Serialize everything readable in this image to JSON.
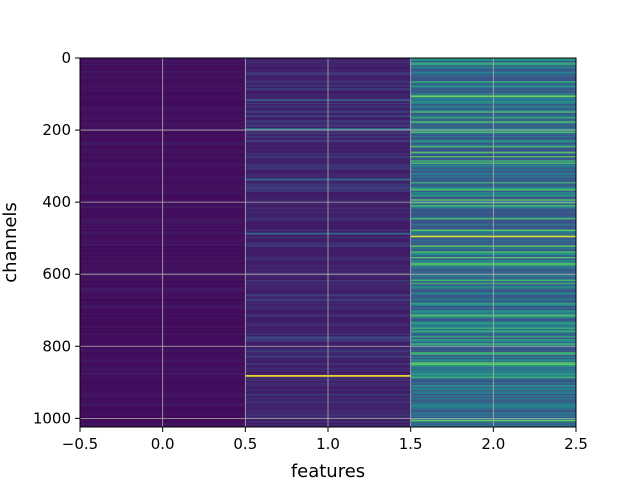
{
  "chart_data": {
    "type": "heatmap",
    "title": "",
    "xlabel": "features",
    "ylabel": "channels",
    "xlim": [
      -0.5,
      2.5
    ],
    "ylim": [
      1024,
      0
    ],
    "y_inverted": true,
    "rows": 1024,
    "columns": [
      0,
      1,
      2
    ],
    "colormap": "viridis",
    "grid": true,
    "x_ticks": [
      "-0.5",
      "0.0",
      "0.5",
      "1.0",
      "1.5",
      "2.0",
      "2.5"
    ],
    "y_ticks": [
      "0",
      "200",
      "400",
      "600",
      "800",
      "1000"
    ],
    "column_profiles": [
      {
        "feature": 0,
        "typical_value": 0.03,
        "spread": 0.02,
        "highlight_rows": []
      },
      {
        "feature": 1,
        "typical_value": 0.08,
        "spread": 0.05,
        "highlight_rows": [
          {
            "row": 880,
            "value": 1.0
          },
          {
            "row": 195,
            "value": 0.45
          },
          {
            "row": 335,
            "value": 0.35
          },
          {
            "row": 485,
            "value": 0.35
          },
          {
            "row": 115,
            "value": 0.3
          }
        ]
      },
      {
        "feature": 2,
        "typical_value": 0.25,
        "spread": 0.2,
        "highlight_rows": [
          {
            "row": 493,
            "value": 0.95
          },
          {
            "row": 260,
            "value": 0.7
          },
          {
            "row": 290,
            "value": 0.65
          },
          {
            "row": 615,
            "value": 0.65
          },
          {
            "row": 400,
            "value": 0.6
          },
          {
            "row": 15,
            "value": 0.6
          },
          {
            "row": 790,
            "value": 0.55
          },
          {
            "row": 875,
            "value": 0.55
          }
        ]
      }
    ]
  }
}
